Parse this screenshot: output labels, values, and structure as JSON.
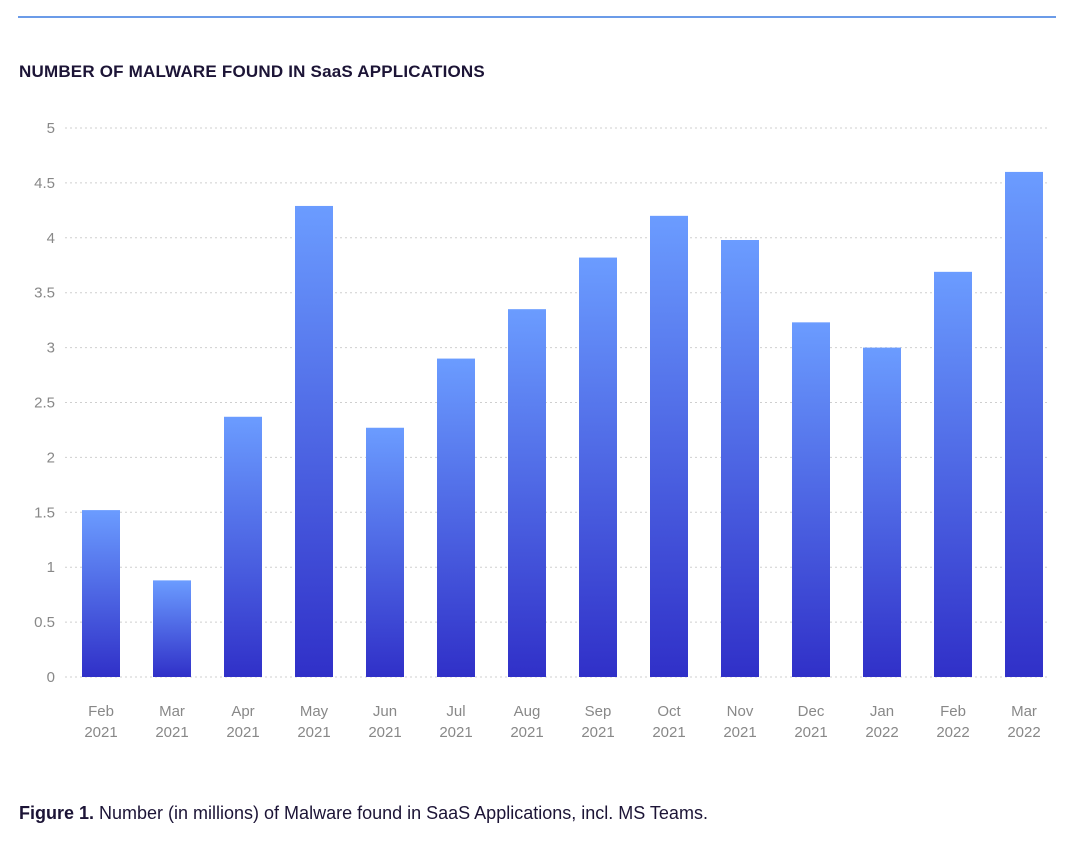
{
  "chart_data": {
    "type": "bar",
    "title": "NUMBER OF MALWARE FOUND IN SaaS APPLICATIONS",
    "categories": [
      [
        "Feb",
        "2021"
      ],
      [
        "Mar",
        "2021"
      ],
      [
        "Apr",
        "2021"
      ],
      [
        "May",
        "2021"
      ],
      [
        "Jun",
        "2021"
      ],
      [
        "Jul",
        "2021"
      ],
      [
        "Aug",
        "2021"
      ],
      [
        "Sep",
        "2021"
      ],
      [
        "Oct",
        "2021"
      ],
      [
        "Nov",
        "2021"
      ],
      [
        "Dec",
        "2021"
      ],
      [
        "Jan",
        "2022"
      ],
      [
        "Feb",
        "2022"
      ],
      [
        "Mar",
        "2022"
      ]
    ],
    "values": [
      1.52,
      0.88,
      2.37,
      4.29,
      2.27,
      2.9,
      3.35,
      3.82,
      4.2,
      3.98,
      3.23,
      3.0,
      3.69,
      4.6
    ],
    "ylim": [
      0,
      5
    ],
    "yticks": [
      "0",
      "0.5",
      "1",
      "1.5",
      "2",
      "2.5",
      "3",
      "3.5",
      "4",
      "4.5",
      "5"
    ],
    "xlabel": "",
    "ylabel": "",
    "grid": true,
    "colors": {
      "bar_top": "#6b9cff",
      "bar_bottom": "#3030c8",
      "accent_line": "#6b9be8",
      "title": "#1c1436"
    }
  },
  "caption": {
    "label": "Figure 1.",
    "text": " Number (in millions) of Malware found in SaaS Applications, incl. MS Teams."
  }
}
